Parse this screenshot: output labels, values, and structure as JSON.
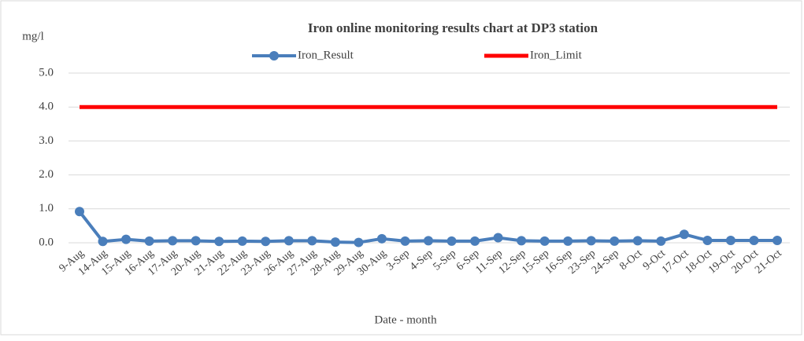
{
  "chart_data": {
    "type": "line",
    "title": "Iron online monitoring results chart at DP3 station",
    "y_label": "mg/l",
    "x_label": "Date - month",
    "categories": [
      "9-Aug",
      "14-Aug",
      "15-Aug",
      "16-Aug",
      "17-Aug",
      "20-Aug",
      "21-Aug",
      "22-Aug",
      "23-Aug",
      "26-Aug",
      "27-Aug",
      "28-Aug",
      "29-Aug",
      "30-Aug",
      "3-Sep",
      "4-Sep",
      "5-Sep",
      "6-Sep",
      "11-Sep",
      "12-Sep",
      "15-Sep",
      "16-Sep",
      "23-Sep",
      "24-Sep",
      "8-Oct",
      "9-Oct",
      "17-Oct",
      "18-Oct",
      "19-Oct",
      "20-Oct",
      "21-Oct"
    ],
    "series": [
      {
        "name": "Iron_Result",
        "color": "#4a7ebb",
        "marker": true,
        "values": [
          0.92,
          0.04,
          0.1,
          0.05,
          0.06,
          0.06,
          0.04,
          0.05,
          0.04,
          0.06,
          0.06,
          0.02,
          0.01,
          0.12,
          0.05,
          0.06,
          0.05,
          0.05,
          0.15,
          0.06,
          0.05,
          0.05,
          0.06,
          0.05,
          0.06,
          0.05,
          0.25,
          0.07,
          0.07,
          0.07,
          0.07
        ]
      },
      {
        "name": "Iron_Limit",
        "color": "#ff0000",
        "marker": false,
        "values": [
          4,
          4,
          4,
          4,
          4,
          4,
          4,
          4,
          4,
          4,
          4,
          4,
          4,
          4,
          4,
          4,
          4,
          4,
          4,
          4,
          4,
          4,
          4,
          4,
          4,
          4,
          4,
          4,
          4,
          4,
          4
        ]
      }
    ],
    "ylim": [
      0,
      5
    ],
    "yticks": [
      {
        "value": 0,
        "label": "0.0"
      },
      {
        "value": 1,
        "label": "1.0"
      },
      {
        "value": 2,
        "label": "2.0"
      },
      {
        "value": 3,
        "label": "3.0"
      },
      {
        "value": 4,
        "label": "4.0"
      },
      {
        "value": 5,
        "label": "5.0"
      }
    ],
    "grid": true,
    "legend": "top"
  }
}
